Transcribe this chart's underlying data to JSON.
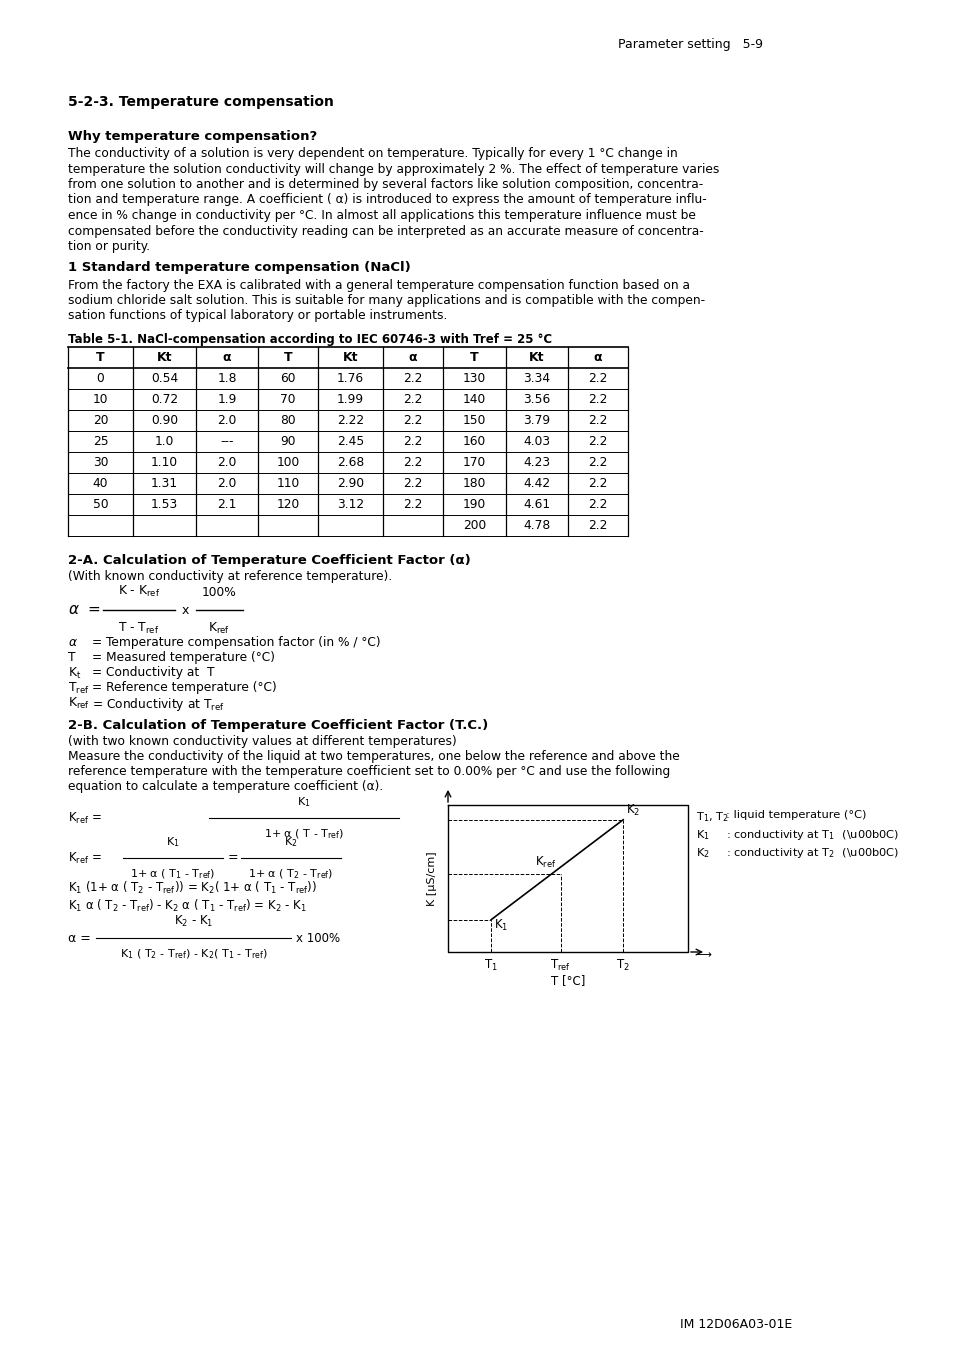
{
  "page_header": "Parameter setting   5-9",
  "section_title": "5-2-3. Temperature compensation",
  "subsection1_title": "Why temperature compensation?",
  "subsection1_body_lines": [
    "The conductivity of a solution is very dependent on temperature. Typically for every 1 °C change in",
    "temperature the solution conductivity will change by approximately 2 %. The effect of temperature varies",
    "from one solution to another and is determined by several factors like solution composition, concentra-",
    "tion and temperature range. A coefficient ( α) is introduced to express the amount of temperature influ-",
    "ence in % change in conductivity per °C. In almost all applications this temperature influence must be",
    "compensated before the conductivity reading can be interpreted as an accurate measure of concentra-",
    "tion or purity."
  ],
  "subsection2_title": "1 Standard temperature compensation (NaCl)",
  "subsection2_body_lines": [
    "From the factory the EXA is calibrated with a general temperature compensation function based on a",
    "sodium chloride salt solution. This is suitable for many applications and is compatible with the compen-",
    "sation functions of typical laboratory or portable instruments."
  ],
  "table_caption": "Table 5-1. NaCl-compensation according to IEC 60746-3 with Tref = 25 °C",
  "table_headers": [
    "T",
    "Kt",
    "α",
    "T",
    "Kt",
    "α",
    "T",
    "Kt",
    "α"
  ],
  "table_data": [
    [
      "0",
      "0.54",
      "1.8",
      "60",
      "1.76",
      "2.2",
      "130",
      "3.34",
      "2.2"
    ],
    [
      "10",
      "0.72",
      "1.9",
      "70",
      "1.99",
      "2.2",
      "140",
      "3.56",
      "2.2"
    ],
    [
      "20",
      "0.90",
      "2.0",
      "80",
      "2.22",
      "2.2",
      "150",
      "3.79",
      "2.2"
    ],
    [
      "25",
      "1.0",
      "---",
      "90",
      "2.45",
      "2.2",
      "160",
      "4.03",
      "2.2"
    ],
    [
      "30",
      "1.10",
      "2.0",
      "100",
      "2.68",
      "2.2",
      "170",
      "4.23",
      "2.2"
    ],
    [
      "40",
      "1.31",
      "2.0",
      "110",
      "2.90",
      "2.2",
      "180",
      "4.42",
      "2.2"
    ],
    [
      "50",
      "1.53",
      "2.1",
      "120",
      "3.12",
      "2.2",
      "190",
      "4.61",
      "2.2"
    ],
    [
      "",
      "",
      "",
      "",
      "",
      "",
      "200",
      "4.78",
      "2.2"
    ]
  ],
  "section2A_title": "2-A. Calculation of Temperature Coefficient Factor (α)",
  "section2A_sub": "(With known conductivity at reference temperature).",
  "section2A_legend": [
    "α  = Temperature compensation factor (in % / °C)",
    "T  = Measured temperature (°C)",
    "Kt = Conductivity at  T",
    "Tref = Reference temperature (°C)",
    "Kref = Conductivity at Tref"
  ],
  "section2B_title": "2-B. Calculation of Temperature Coefficient Factor (T.C.)",
  "section2B_sub": "(with two known conductivity values at different temperatures)",
  "section2B_body_lines": [
    "Measure the conductivity of the liquid at two temperatures, one below the reference and above the",
    "reference temperature with the temperature coefficient set to 0.00% per °C and use the following",
    "equation to calculate a temperature coefficient (α)."
  ],
  "footer": "IM 12D06A03-01E",
  "bg_color": "#ffffff",
  "text_color": "#000000"
}
